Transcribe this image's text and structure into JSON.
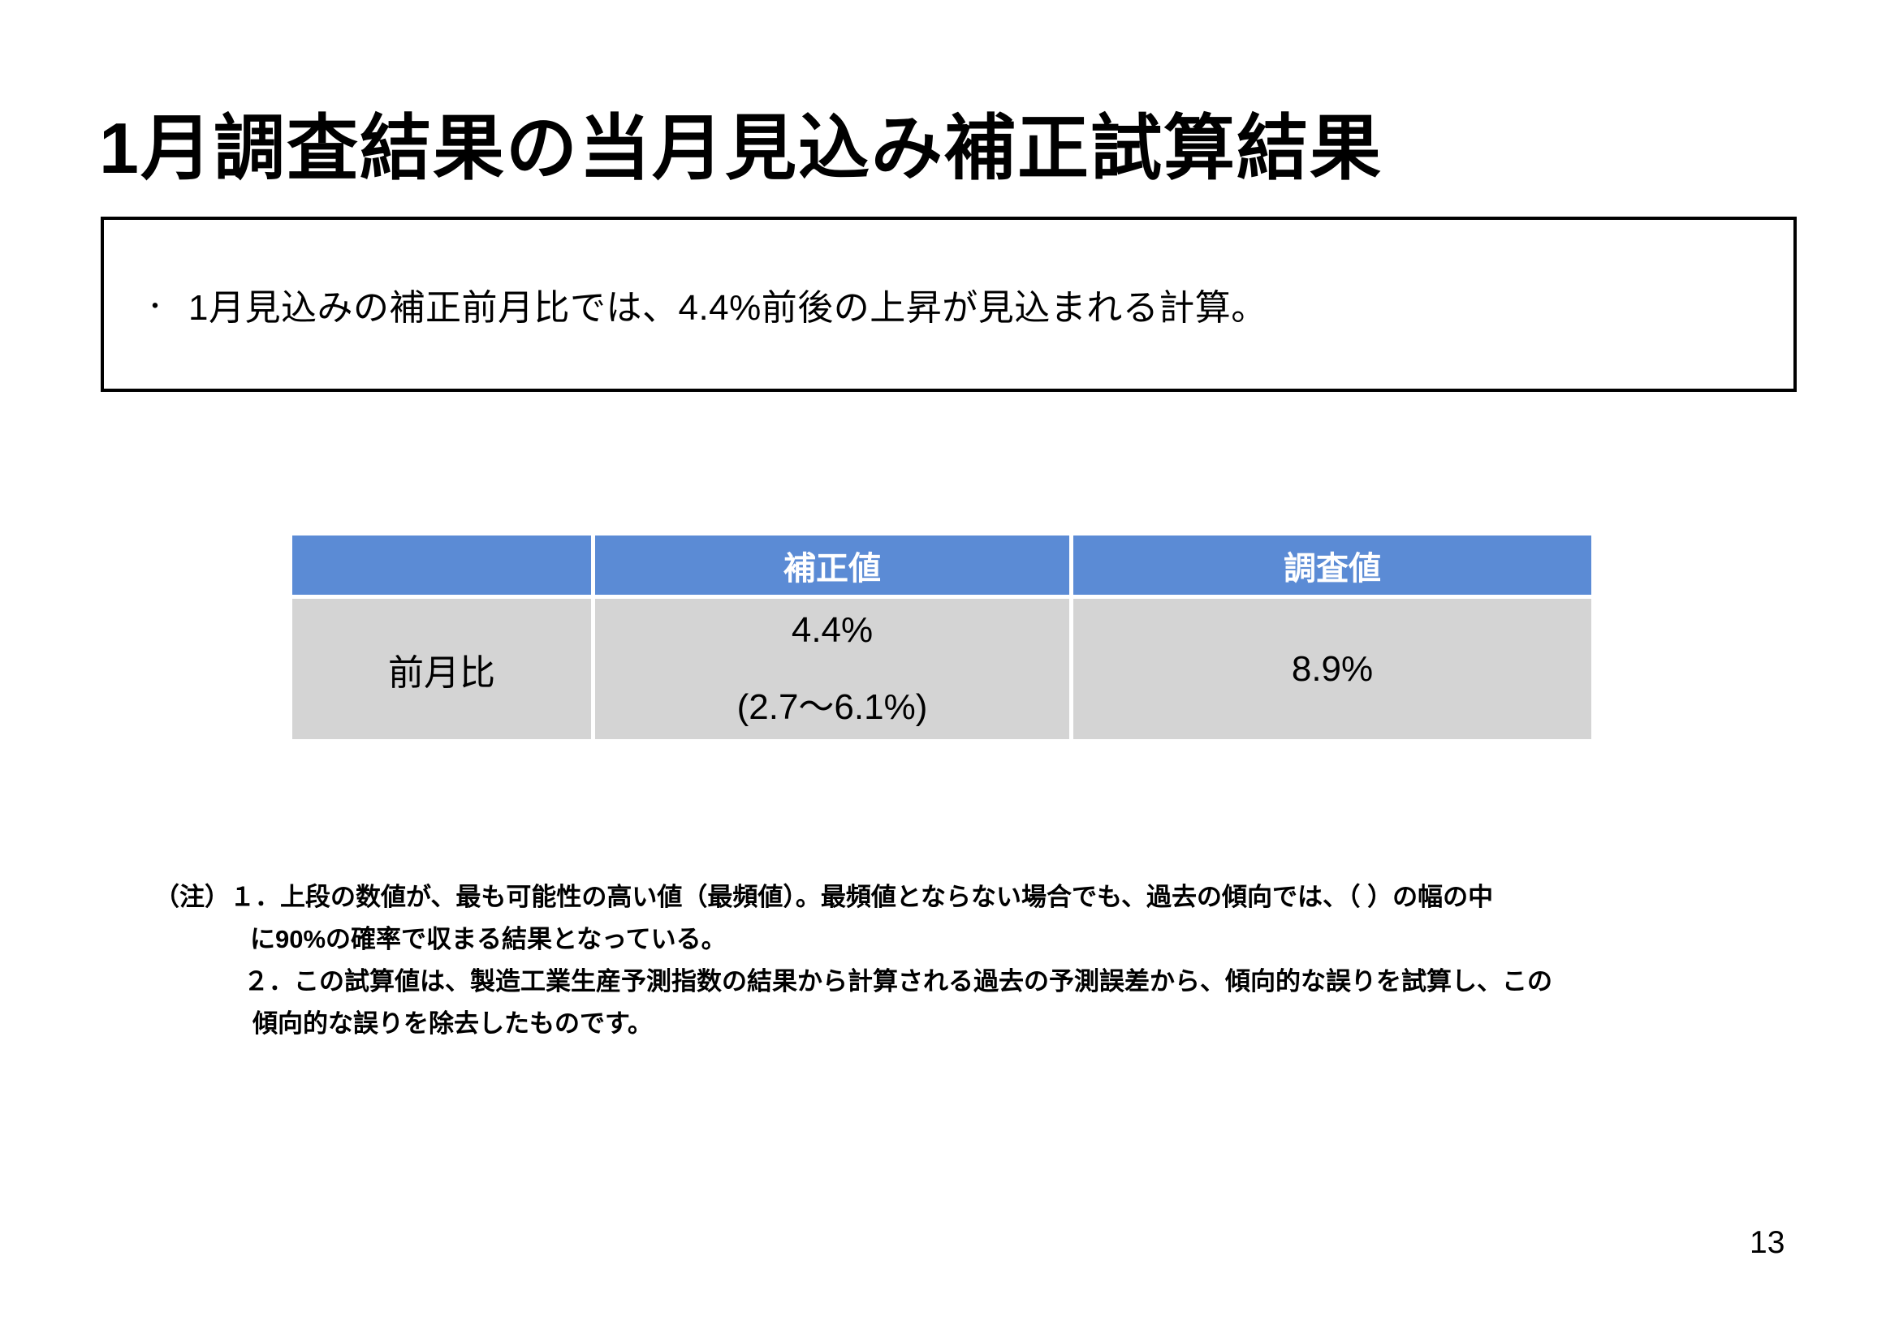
{
  "slide": {
    "title": "1月調査結果の当月見込み補正試算結果",
    "page_number": "13"
  },
  "summary": {
    "bullet": "・",
    "text": "1月見込みの補正前月比では、4.4%前後の上昇が見込まれる計算。"
  },
  "table": {
    "headers": {
      "col1": "",
      "col2": "補正値",
      "col3": "調査値"
    },
    "row": {
      "label": "前月比",
      "corrected_value": "4.4%",
      "corrected_range": "(2.7～6.1%)",
      "survey_value": "8.9%"
    },
    "colors": {
      "header_bg": "#5B8BD5",
      "header_text": "#FFFFFF",
      "body_bg": "#D4D4D4",
      "body_text": "#000000"
    }
  },
  "notes": {
    "line1": "（注）１．上段の数値が、最も可能性の高い値（最頻値）。最頻値とならない場合でも、過去の傾向では、（ ）の幅の中",
    "line2": "に90%の確率で収まる結果となっている。",
    "line3": "２．この試算値は、製造工業生産予測指数の結果から計算される過去の予測誤差から、傾向的な誤りを試算し、この",
    "line4": "傾向的な誤りを除去したものです。"
  }
}
